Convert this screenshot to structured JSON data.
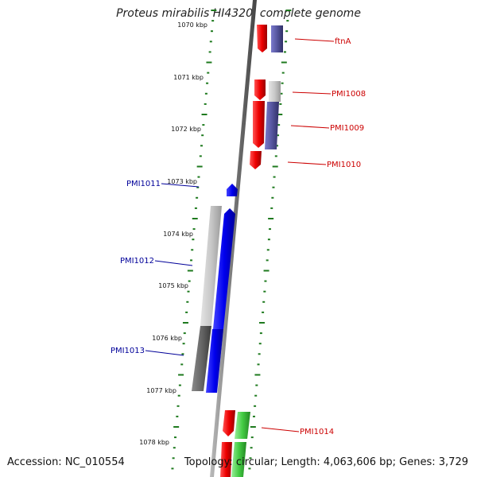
{
  "title": "Proteus mirabilis HI4320, complete genome",
  "footer": {
    "accession": "Accession: NC_010554",
    "summary": "Topology: circular; Length: 4,063,606 bp; Genes: 3,729"
  },
  "ruler": {
    "labels": [
      "1070 kbp",
      "1071 kbp",
      "1072 kbp",
      "1073 kbp",
      "1074 kbp",
      "1075 kbp",
      "1076 kbp",
      "1077 kbp",
      "1078 kbp"
    ]
  },
  "genes_forward": [
    "ftnA",
    "PMI1008",
    "PMI1009",
    "PMI1010",
    "PMI1014"
  ],
  "genes_reverse": [
    "PMI1011",
    "PMI1012",
    "PMI1013"
  ],
  "colors": {
    "forward_gene": "#dd0000",
    "reverse_gene": "#0000dd",
    "forward_label": "#cc0000",
    "reverse_label": "#000099",
    "backbone": "#777777",
    "ruler": "#1e7a1e"
  }
}
